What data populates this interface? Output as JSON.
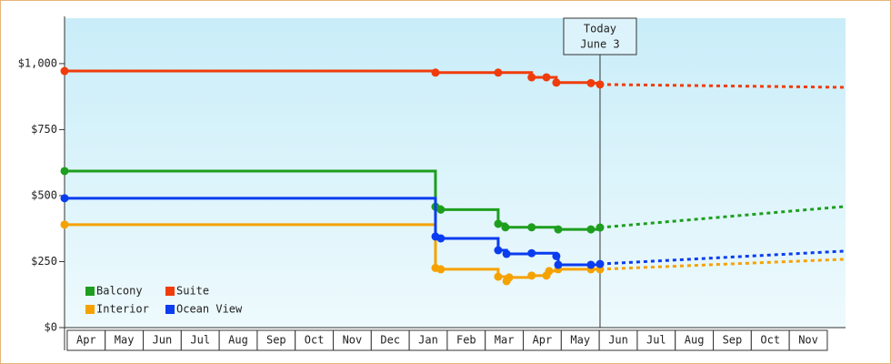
{
  "chart_data": {
    "type": "step",
    "ylim": [
      0,
      1172
    ],
    "yticks": [
      {
        "value": 0,
        "label": "$0"
      },
      {
        "value": 250,
        "label": "$250"
      },
      {
        "value": 500,
        "label": "$500"
      },
      {
        "value": 750,
        "label": "$750"
      },
      {
        "value": 1000,
        "label": "$1,000"
      }
    ],
    "xlim": [
      -0.07,
      20.48
    ],
    "xticks": [
      {
        "value": 0.5,
        "label": "Apr"
      },
      {
        "value": 1.5,
        "label": "May"
      },
      {
        "value": 2.5,
        "label": "Jun"
      },
      {
        "value": 3.5,
        "label": "Jul"
      },
      {
        "value": 4.5,
        "label": "Aug"
      },
      {
        "value": 5.5,
        "label": "Sep"
      },
      {
        "value": 6.5,
        "label": "Oct"
      },
      {
        "value": 7.5,
        "label": "Nov"
      },
      {
        "value": 8.5,
        "label": "Dec"
      },
      {
        "value": 9.5,
        "label": "Jan"
      },
      {
        "value": 10.5,
        "label": "Feb"
      },
      {
        "value": 11.5,
        "label": "Mar"
      },
      {
        "value": 12.5,
        "label": "Apr"
      },
      {
        "value": 13.5,
        "label": "May"
      },
      {
        "value": 14.5,
        "label": "Jun"
      },
      {
        "value": 15.5,
        "label": "Jul"
      },
      {
        "value": 16.5,
        "label": "Aug"
      },
      {
        "value": 17.5,
        "label": "Sep"
      },
      {
        "value": 18.5,
        "label": "Oct"
      },
      {
        "value": 19.5,
        "label": "Nov"
      }
    ],
    "annotation": {
      "label": "Today",
      "sublabel": "June 3",
      "x": 14.02
    },
    "series": [
      {
        "name": "Balcony",
        "color": "#1e9e1e",
        "x": [
          -0.07,
          9.69,
          9.83,
          11.34,
          11.53,
          12.22,
          12.92,
          13.78,
          14.02
        ],
        "values": [
          593,
          458,
          447,
          393,
          380,
          380,
          372,
          372,
          379
        ],
        "forecast_x": [
          14.02,
          20.48
        ],
        "forecast_values": [
          379,
          459
        ]
      },
      {
        "name": "Suite",
        "color": "#f03c0a",
        "x": [
          -0.07,
          9.69,
          11.34,
          12.22,
          12.61,
          12.87,
          13.78,
          14.02
        ],
        "values": [
          972,
          966,
          966,
          948,
          948,
          928,
          926,
          921
        ],
        "forecast_x": [
          14.02,
          20.48
        ],
        "forecast_values": [
          921,
          910
        ]
      },
      {
        "name": "Interior",
        "color": "#f5a200",
        "x": [
          -0.07,
          9.69,
          9.83,
          11.34,
          11.56,
          11.63,
          12.22,
          12.61,
          12.68,
          12.92,
          13.78,
          14.02
        ],
        "values": [
          390,
          226,
          221,
          193,
          176,
          190,
          197,
          197,
          214,
          221,
          221,
          221
        ],
        "forecast_x": [
          14.02,
          20.48
        ],
        "forecast_values": [
          221,
          259
        ]
      },
      {
        "name": "Ocean View",
        "color": "#0a3cf0",
        "x": [
          -0.07,
          9.69,
          9.83,
          11.34,
          11.56,
          12.22,
          12.87,
          12.92,
          13.78,
          14.02
        ],
        "values": [
          490,
          345,
          338,
          293,
          279,
          282,
          271,
          238,
          238,
          241
        ],
        "forecast_x": [
          14.02,
          20.48
        ],
        "forecast_values": [
          241,
          290
        ]
      }
    ]
  }
}
